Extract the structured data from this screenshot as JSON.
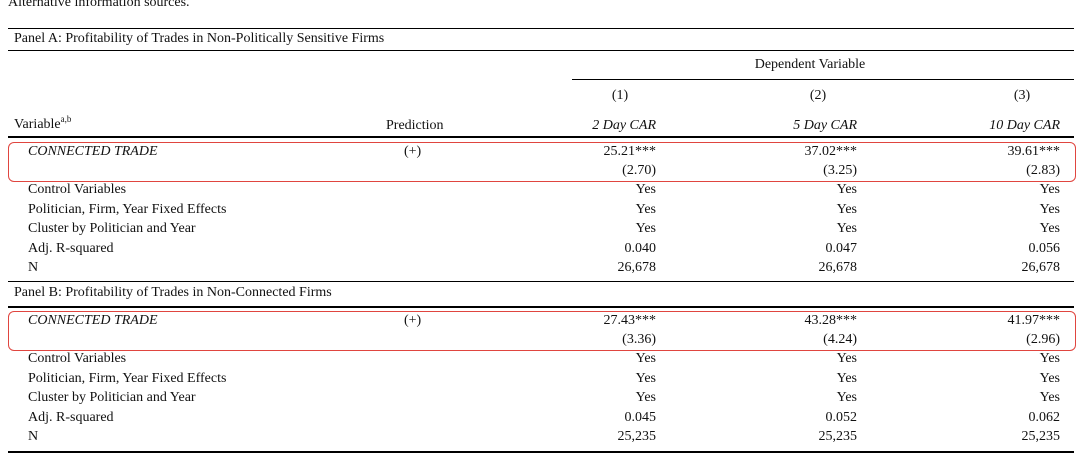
{
  "caption": "Alternative information sources.",
  "panel_a": {
    "title": "Panel A: Profitability of Trades in Non-Politically Sensitive Firms",
    "dependent_variable_label": "Dependent Variable",
    "col_numbers": [
      "(1)",
      "(2)",
      "(3)"
    ],
    "header": {
      "variable": "Variable",
      "variable_sup": "a,b",
      "prediction": "Prediction",
      "cols": [
        "2 Day CAR",
        "5 Day CAR",
        "10 Day CAR"
      ]
    },
    "connected_trade": {
      "label": "CONNECTED TRADE",
      "prediction": "(+)",
      "coefs": [
        "25.21***",
        "37.02***",
        "39.61***"
      ],
      "tstats": [
        "(2.70)",
        "(3.25)",
        "(2.83)"
      ]
    },
    "rows": [
      {
        "label": "Control Variables",
        "values": [
          "Yes",
          "Yes",
          "Yes"
        ]
      },
      {
        "label": "Politician, Firm, Year Fixed Effects",
        "values": [
          "Yes",
          "Yes",
          "Yes"
        ]
      },
      {
        "label": "Cluster by Politician and Year",
        "values": [
          "Yes",
          "Yes",
          "Yes"
        ]
      },
      {
        "label": "Adj. R-squared",
        "values": [
          "0.040",
          "0.047",
          "0.056"
        ]
      },
      {
        "label": "N",
        "values": [
          "26,678",
          "26,678",
          "26,678"
        ]
      }
    ]
  },
  "panel_b": {
    "title": "Panel B: Profitability of Trades in Non-Connected Firms",
    "connected_trade": {
      "label": "CONNECTED TRADE",
      "prediction": "(+)",
      "coefs": [
        "27.43***",
        "43.28***",
        "41.97***"
      ],
      "tstats": [
        "(3.36)",
        "(4.24)",
        "(2.96)"
      ]
    },
    "rows": [
      {
        "label": "Control Variables",
        "values": [
          "Yes",
          "Yes",
          "Yes"
        ]
      },
      {
        "label": "Politician, Firm, Year Fixed Effects",
        "values": [
          "Yes",
          "Yes",
          "Yes"
        ]
      },
      {
        "label": "Cluster by Politician and Year",
        "values": [
          "Yes",
          "Yes",
          "Yes"
        ]
      },
      {
        "label": "Adj. R-squared",
        "values": [
          "0.045",
          "0.052",
          "0.062"
        ]
      },
      {
        "label": "N",
        "values": [
          "25,235",
          "25,235",
          "25,235"
        ]
      }
    ]
  },
  "colors": {
    "highlight_box": "#e0453f",
    "rule": "#000000"
  }
}
